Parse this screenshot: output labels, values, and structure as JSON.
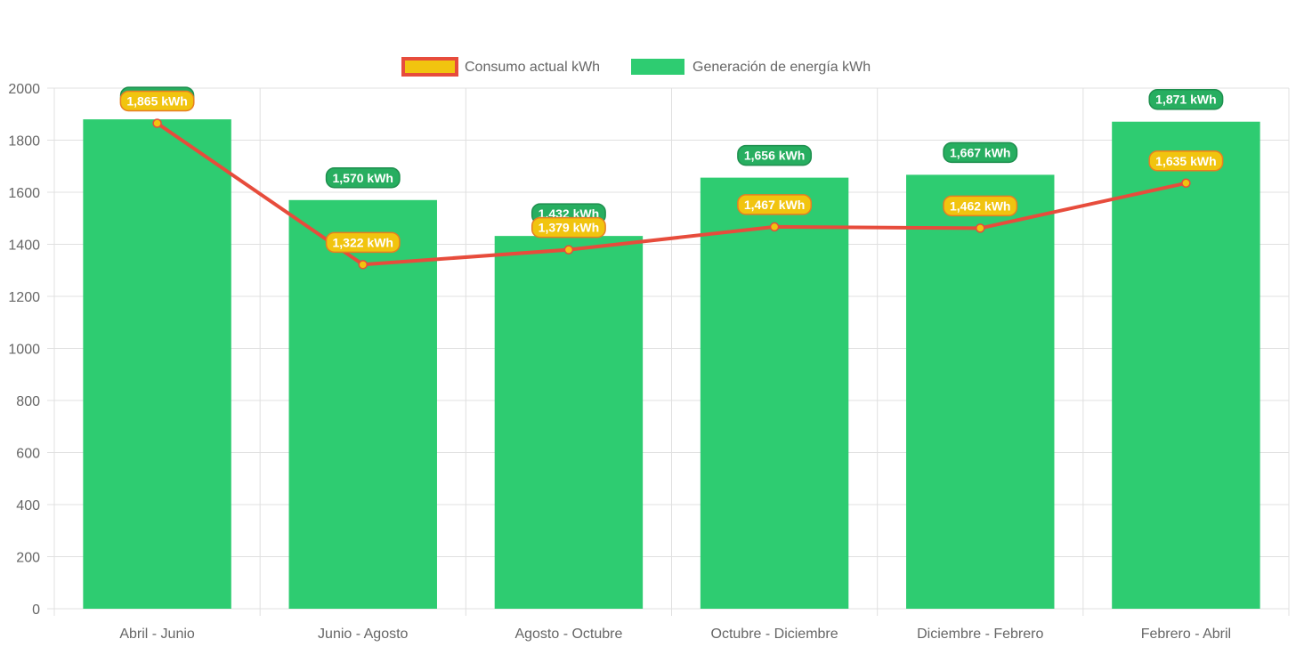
{
  "chart_data": {
    "type": "bar",
    "categories": [
      "Abril - Junio",
      "Junio - Agosto",
      "Agosto - Octubre",
      "Octubre - Diciembre",
      "Diciembre - Febrero",
      "Febrero - Abril"
    ],
    "ylim": [
      0,
      2000
    ],
    "yticks": [
      0,
      200,
      400,
      600,
      800,
      1000,
      1200,
      1400,
      1600,
      1800,
      2000
    ],
    "grid": true,
    "legend_position": "top",
    "series": [
      {
        "name": "Consumo actual kWh",
        "type": "line",
        "values": [
          1865,
          1322,
          1379,
          1467,
          1462,
          1635
        ],
        "labels": [
          "1,865 kWh",
          "1,322 kWh",
          "1,379 kWh",
          "1,467 kWh",
          "1,462 kWh",
          "1,635 kWh"
        ],
        "line_color": "#e74c3c",
        "point_color": "#f1c40f"
      },
      {
        "name": "Generación de energía kWh",
        "type": "bar",
        "values": [
          1880,
          1570,
          1432,
          1656,
          1667,
          1871
        ],
        "labels": [
          "",
          "1,570 kWh",
          "1,432 kWh",
          "1,656 kWh",
          "1,667 kWh",
          "1,871 kWh"
        ],
        "color": "#2ecc71"
      }
    ]
  }
}
